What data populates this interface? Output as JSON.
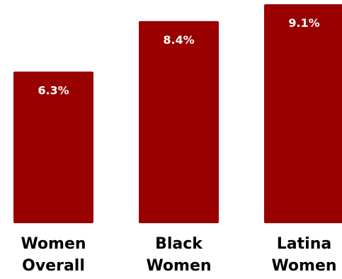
{
  "chart_data": {
    "type": "bar",
    "categories": [
      [
        "Women",
        "Overall"
      ],
      [
        "Black",
        "Women"
      ],
      [
        "Latina",
        "Women"
      ]
    ],
    "values": [
      6.3,
      8.4,
      9.1
    ],
    "value_labels": [
      "6.3%",
      "8.4%",
      "9.1%"
    ],
    "title": "",
    "xlabel": "",
    "ylabel": "",
    "ylim": [
      0,
      9.1
    ],
    "grid": false,
    "legend": "none",
    "bar_color": "#990000",
    "label_color": "#ffffff"
  }
}
